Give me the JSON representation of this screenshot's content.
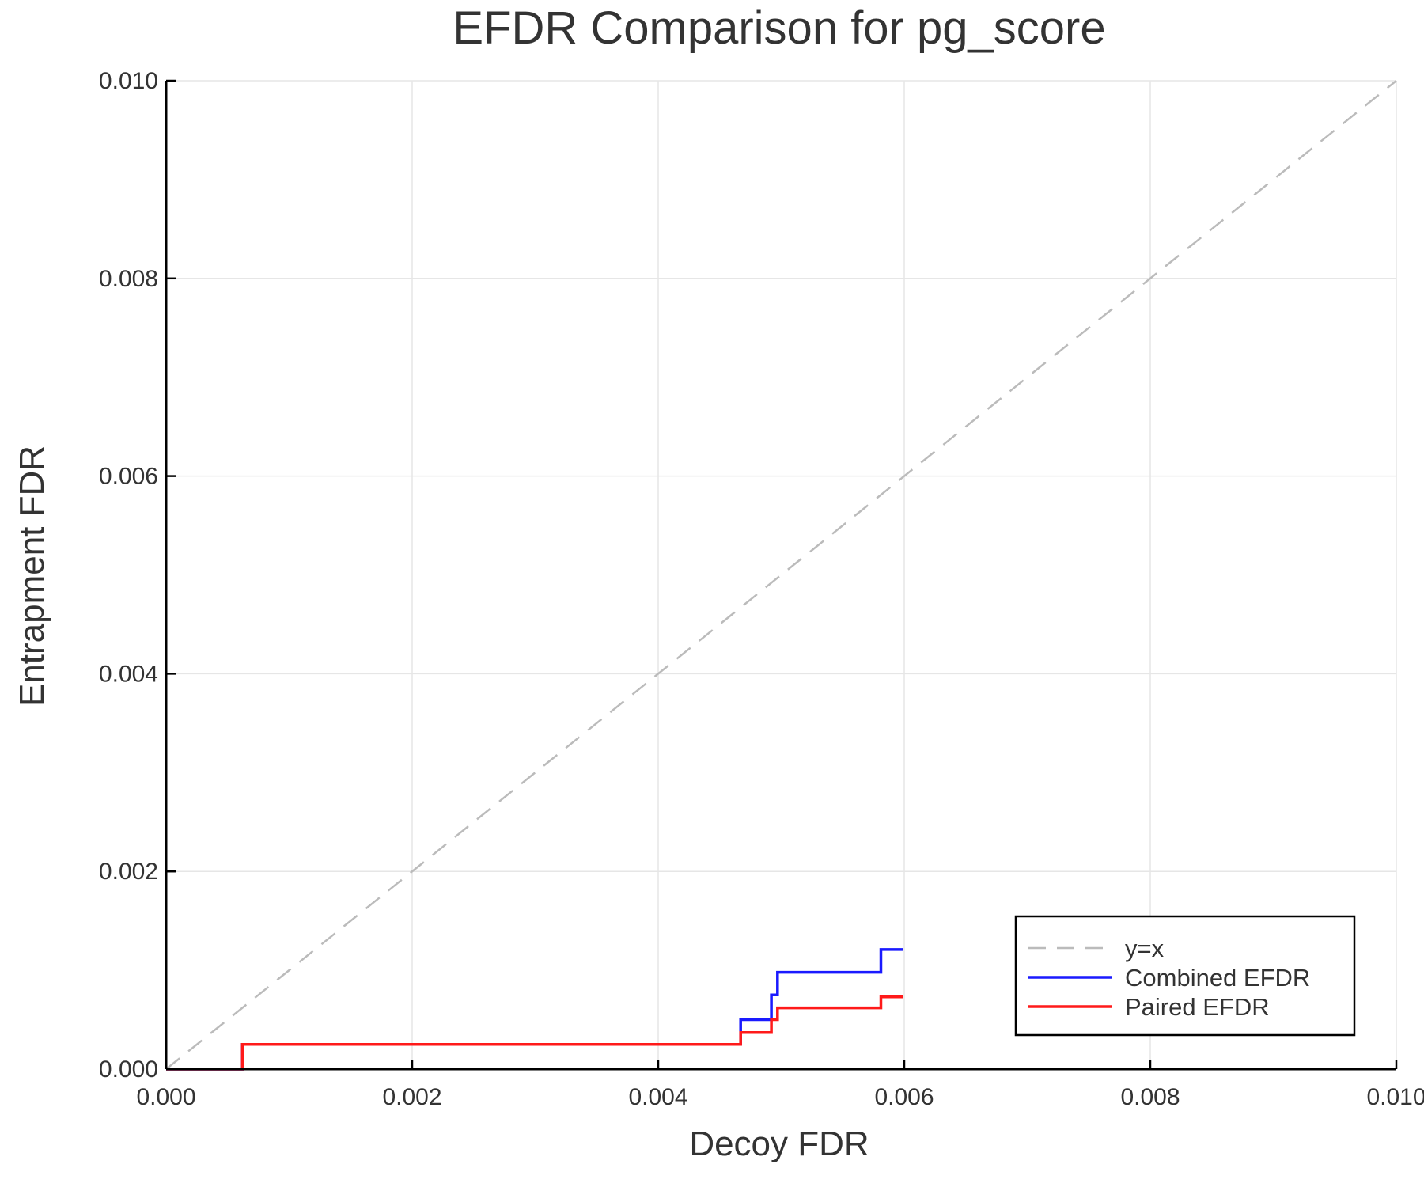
{
  "chart_data": {
    "type": "line",
    "title": "EFDR Comparison for pg_score",
    "xlabel": "Decoy FDR",
    "ylabel": "Entrapment FDR",
    "xlim": [
      0,
      0.01
    ],
    "ylim": [
      0,
      0.01
    ],
    "xticks": [
      "0.000",
      "0.002",
      "0.004",
      "0.006",
      "0.008",
      "0.010"
    ],
    "yticks": [
      "0.000",
      "0.002",
      "0.004",
      "0.006",
      "0.008",
      "0.010"
    ],
    "grid": true,
    "legend_position": "bottom-right",
    "series": [
      {
        "name": "y=x",
        "color": "#bbbbbb",
        "dash": "dashed",
        "x": [
          0,
          0.01
        ],
        "y": [
          0,
          0.01
        ]
      },
      {
        "name": "Combined EFDR",
        "color": "#1a1aff",
        "dash": "solid",
        "step": true,
        "x": [
          0,
          0.00062,
          0.00062,
          0.00467,
          0.00467,
          0.00492,
          0.00492,
          0.00497,
          0.00497,
          0.00581,
          0.00581,
          0.00599
        ],
        "y": [
          0,
          0,
          0.00025,
          0.00025,
          0.0005,
          0.0005,
          0.00075,
          0.00075,
          0.00098,
          0.00098,
          0.00121,
          0.00121
        ]
      },
      {
        "name": "Paired EFDR",
        "color": "#ff1a1a",
        "dash": "solid",
        "step": true,
        "x": [
          0,
          0.00062,
          0.00062,
          0.00467,
          0.00467,
          0.00492,
          0.00492,
          0.00497,
          0.00497,
          0.00581,
          0.00581,
          0.00599
        ],
        "y": [
          0,
          0,
          0.00025,
          0.00025,
          0.00037,
          0.00037,
          0.0005,
          0.0005,
          0.00062,
          0.00062,
          0.00073,
          0.00073
        ]
      }
    ]
  }
}
